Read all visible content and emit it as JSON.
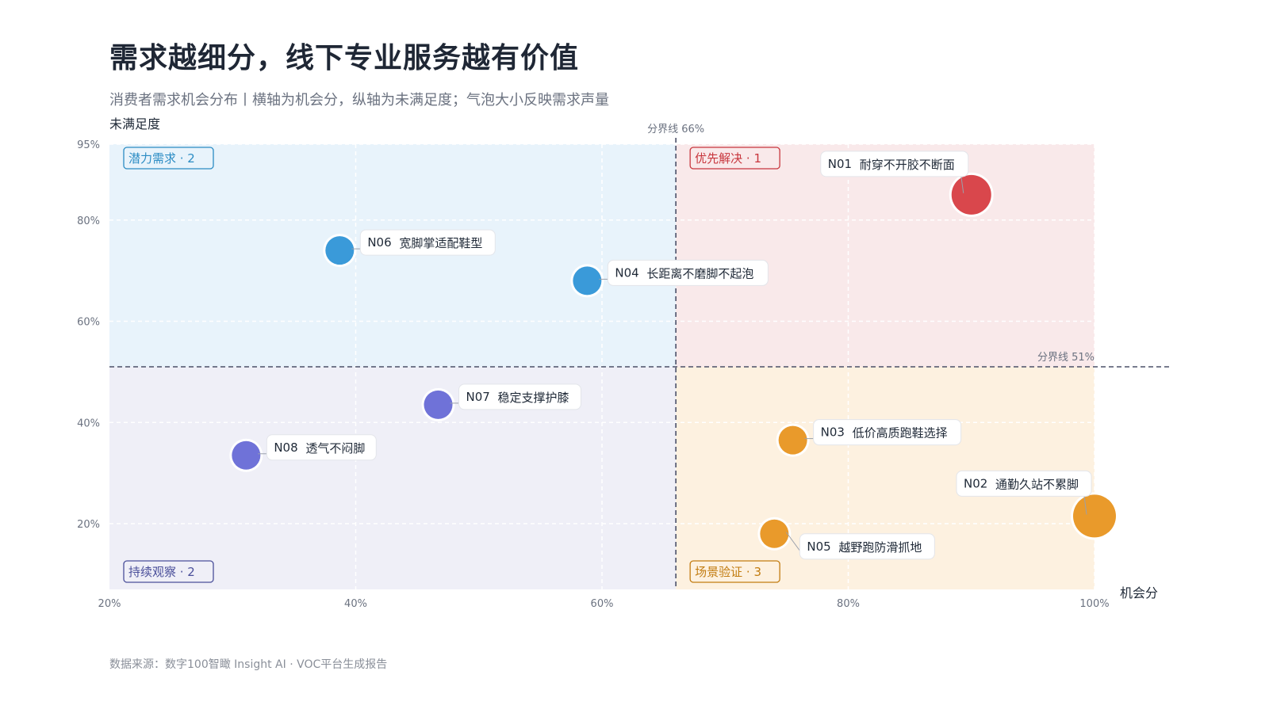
{
  "header": {
    "title": "需求越细分，线下专业服务越有价值",
    "subtitle": "消费者需求机会分布丨横轴为机会分，纵轴为未满足度；气泡大小反映需求声量"
  },
  "footer": {
    "source": "数据来源：数字100智瞰 Insight AI · VOC平台生成报告"
  },
  "chart_data": {
    "type": "scatter",
    "xlabel": "机会分",
    "ylabel": "未满足度",
    "xlim": [
      20,
      100
    ],
    "ylim": [
      7,
      95
    ],
    "x_ticks": [
      "20%",
      "40%",
      "60%",
      "80%",
      "100%"
    ],
    "x_tick_values": [
      20,
      40,
      60,
      80,
      100
    ],
    "y_ticks": [
      "20%",
      "40%",
      "60%",
      "80%",
      "95%"
    ],
    "y_tick_values": [
      20,
      40,
      60,
      80,
      95
    ],
    "grid": true,
    "dividers": {
      "x": {
        "value": 66,
        "label": "分界线 66%"
      },
      "y": {
        "value": 51,
        "label": "分界线 51%"
      }
    },
    "quadrants": [
      {
        "name": "潜力需求",
        "count": "2",
        "position": "top-left",
        "color": "#2b8cc4",
        "fill": "#e8f3fb"
      },
      {
        "name": "优先解决",
        "count": "1",
        "position": "top-right",
        "color": "#c8363d",
        "fill": "#f9e9ea"
      },
      {
        "name": "持续观察",
        "count": "2",
        "position": "bottom-left",
        "color": "#4a4f9a",
        "fill": "#efeff7"
      },
      {
        "name": "场景验证",
        "count": "3",
        "position": "bottom-right",
        "color": "#c27c10",
        "fill": "#fdf1e0"
      }
    ],
    "points": [
      {
        "code": "N01",
        "label": "耐穿不开胶不断面",
        "x": 90,
        "y": 85,
        "size": "medium",
        "color": "#d9474c"
      },
      {
        "code": "N06",
        "label": "宽脚掌适配鞋型",
        "x": 38.7,
        "y": 74,
        "size": "small",
        "color": "#3a9ad9"
      },
      {
        "code": "N04",
        "label": "长距离不磨脚不起泡",
        "x": 58.8,
        "y": 68,
        "size": "small",
        "color": "#3a9ad9"
      },
      {
        "code": "N07",
        "label": "稳定支撑护膝",
        "x": 46.7,
        "y": 43.5,
        "size": "small",
        "color": "#6f72d8"
      },
      {
        "code": "N08",
        "label": "透气不闷脚",
        "x": 31.1,
        "y": 33.5,
        "size": "small",
        "color": "#6f72d8"
      },
      {
        "code": "N03",
        "label": "低价高质跑鞋选择",
        "x": 75.5,
        "y": 36.5,
        "size": "small",
        "color": "#e99a2b"
      },
      {
        "code": "N02",
        "label": "通勤久站不累脚",
        "x": 100,
        "y": 21.5,
        "size": "large",
        "color": "#e99a2b"
      },
      {
        "code": "N05",
        "label": "越野跑防滑抓地",
        "x": 74,
        "y": 18,
        "size": "small",
        "color": "#e99a2b"
      }
    ]
  }
}
